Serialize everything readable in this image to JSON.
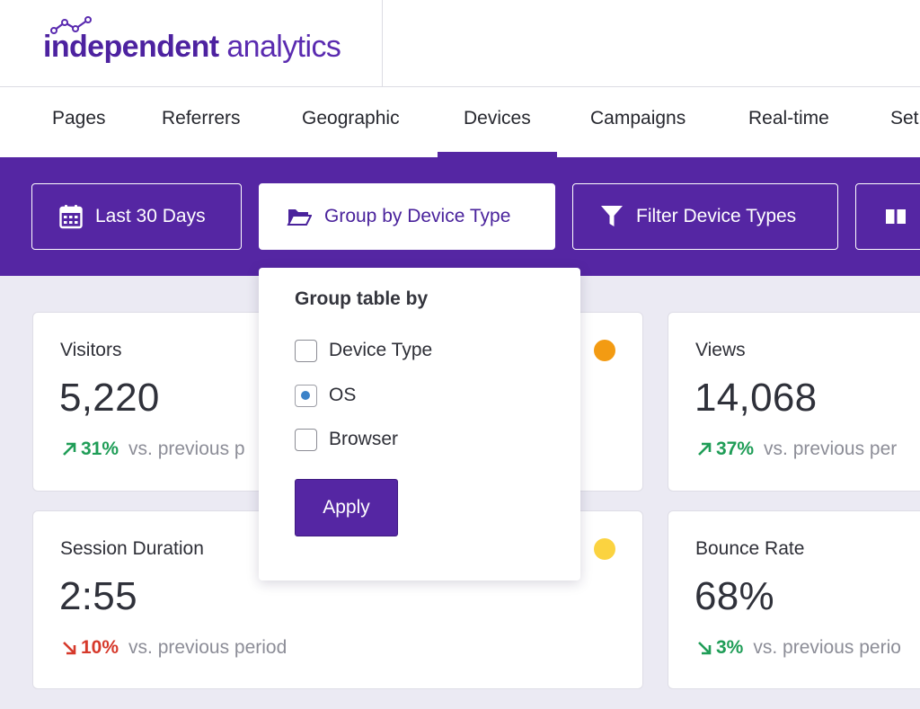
{
  "header": {
    "logo_bold": "independent",
    "logo_light": " analytics"
  },
  "tabs": [
    {
      "label": "Pages"
    },
    {
      "label": "Referrers"
    },
    {
      "label": "Geographic"
    },
    {
      "label": "Devices",
      "active": true
    },
    {
      "label": "Campaigns"
    },
    {
      "label": "Real-time"
    },
    {
      "label": "Set"
    }
  ],
  "toolbar": {
    "date_label": "Last 30 Days",
    "group_label": "Group by Device Type",
    "filter_label": "Filter Device Types"
  },
  "dropdown": {
    "title": "Group table by",
    "options": [
      {
        "label": "Device Type",
        "checked": false
      },
      {
        "label": "OS",
        "checked": true
      },
      {
        "label": "Browser",
        "checked": false
      }
    ],
    "apply_label": "Apply"
  },
  "cards": [
    {
      "label": "Visitors",
      "value": "5,220",
      "delta": "31%",
      "direction": "up",
      "compare": "vs. previous p",
      "dot_color": "#f39b12"
    },
    {
      "label": "Views",
      "value": "14,068",
      "delta": "37%",
      "direction": "up",
      "compare": "vs. previous per"
    },
    {
      "label": "Session Duration",
      "value": "2:55",
      "delta": "10%",
      "direction": "down",
      "compare": "vs. previous period",
      "dot_color": "#fbd340"
    },
    {
      "label": "Bounce Rate",
      "value": "68%",
      "delta": "3%",
      "direction": "down-good",
      "compare": "vs. previous perio"
    }
  ],
  "colors": {
    "brand_purple": "#5526a3",
    "positive": "#1f9d57",
    "negative": "#d6392b"
  }
}
